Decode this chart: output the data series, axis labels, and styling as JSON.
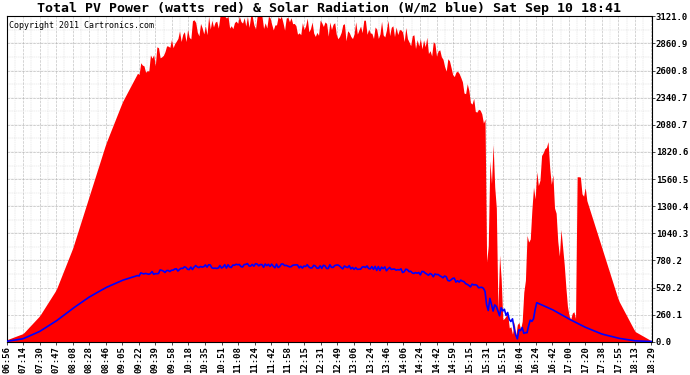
{
  "title": "Total PV Power (watts red) & Solar Radiation (W/m2 blue) Sat Sep 10 18:41",
  "copyright": "Copyright 2011 Cartronics.com",
  "yticks": [
    0.0,
    260.1,
    520.2,
    780.2,
    1040.3,
    1300.4,
    1560.5,
    1820.6,
    2080.7,
    2340.7,
    2600.8,
    2860.9,
    3121.0
  ],
  "ymax": 3121.0,
  "ymin": 0.0,
  "xtick_labels": [
    "06:56",
    "07:14",
    "07:30",
    "07:47",
    "08:08",
    "08:28",
    "08:46",
    "09:05",
    "09:22",
    "09:39",
    "09:58",
    "10:18",
    "10:35",
    "10:51",
    "11:08",
    "11:24",
    "11:42",
    "11:58",
    "12:15",
    "12:31",
    "12:49",
    "13:06",
    "13:24",
    "13:46",
    "14:06",
    "14:24",
    "14:42",
    "14:59",
    "15:15",
    "15:31",
    "15:51",
    "16:04",
    "16:24",
    "16:42",
    "17:00",
    "17:20",
    "17:38",
    "17:55",
    "18:13",
    "18:29"
  ],
  "bg_color": "#ffffff",
  "grid_color": "#aaaaaa",
  "fill_color": "#ff0000",
  "line_color": "#0000ff",
  "title_fontsize": 9.5,
  "copyright_fontsize": 6,
  "tick_fontsize": 6.5,
  "pv_power": [
    20,
    80,
    250,
    500,
    900,
    1400,
    1900,
    2300,
    2600,
    2750,
    2900,
    3000,
    3050,
    3100,
    3120,
    3120,
    3100,
    3080,
    3050,
    3020,
    3000,
    3000,
    3020,
    3010,
    2980,
    2900,
    2800,
    2600,
    2400,
    2100,
    1850,
    100,
    1700,
    1750,
    1600,
    1400,
    900,
    400,
    100,
    10
  ],
  "solar": [
    5,
    30,
    100,
    200,
    320,
    430,
    520,
    590,
    640,
    670,
    690,
    710,
    720,
    725,
    730,
    732,
    730,
    728,
    725,
    722,
    718,
    714,
    708,
    698,
    682,
    660,
    632,
    595,
    548,
    490,
    420,
    200,
    380,
    310,
    220,
    140,
    75,
    35,
    10,
    3
  ]
}
